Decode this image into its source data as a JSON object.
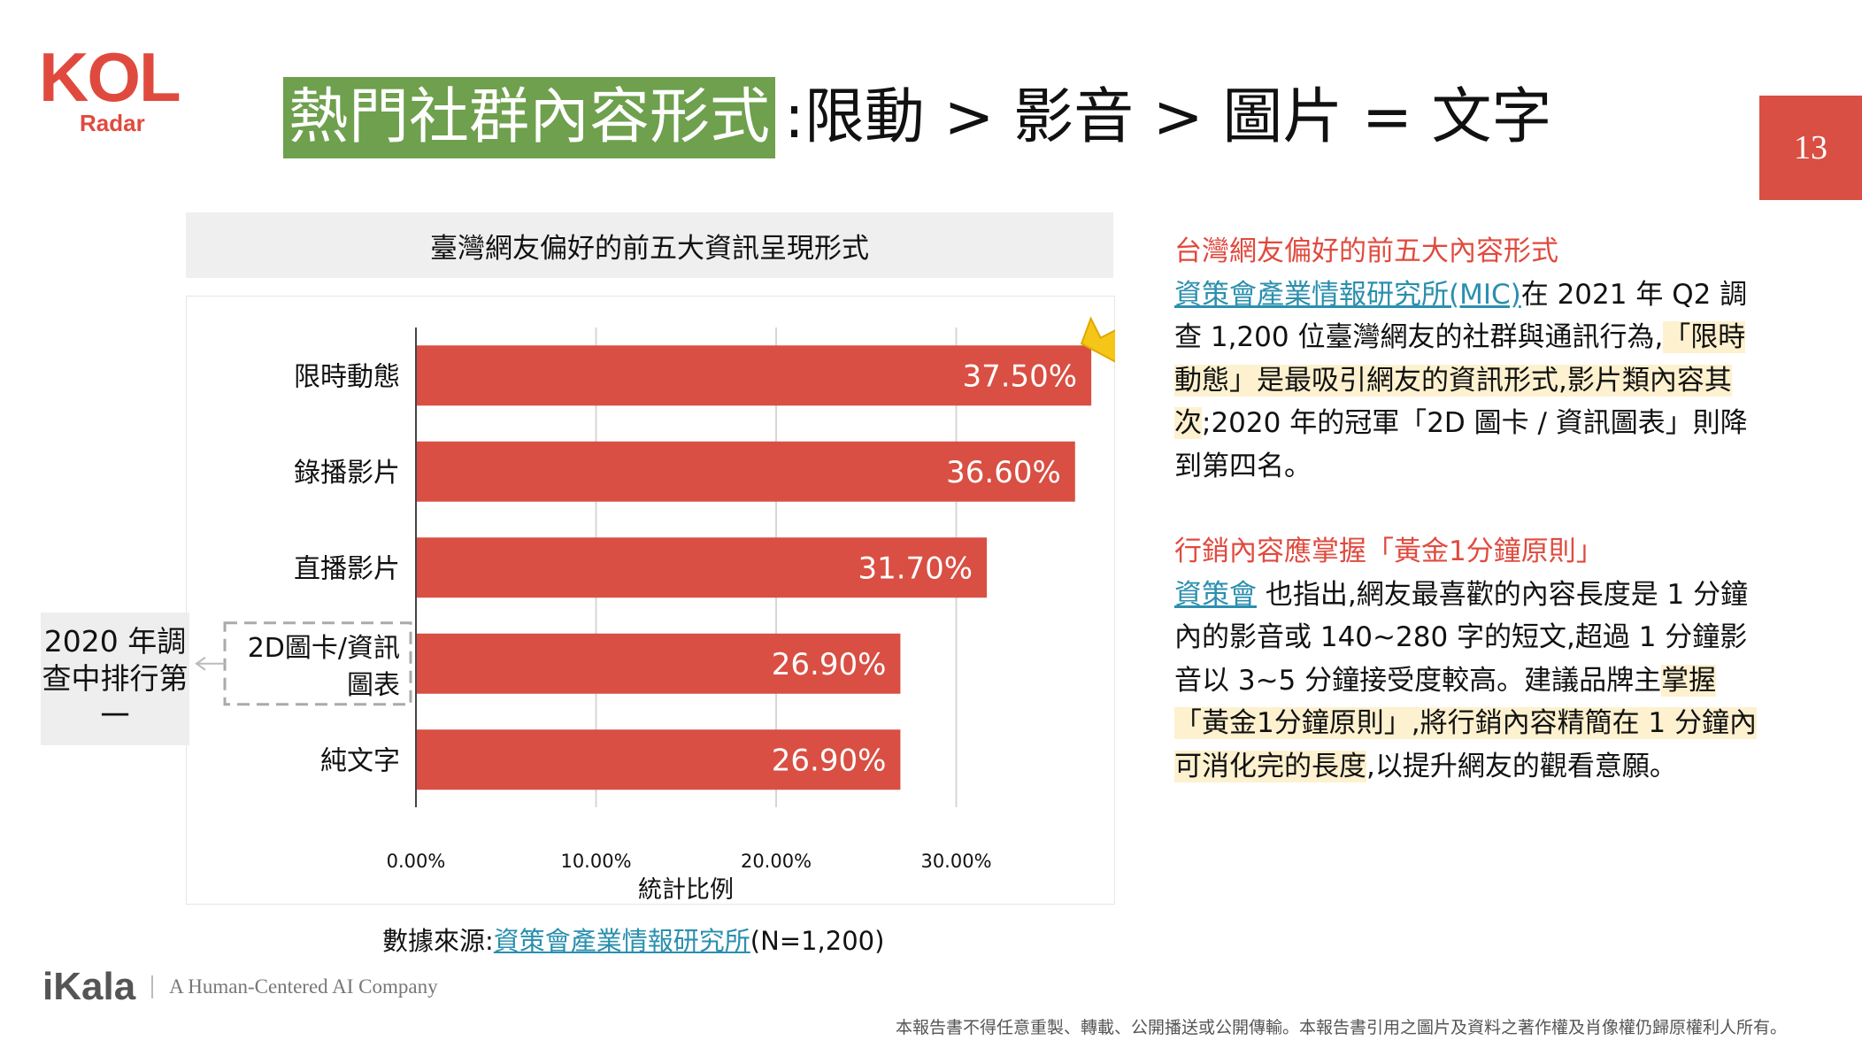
{
  "logo": {
    "kol": "KOL",
    "radar": "Radar"
  },
  "page_number": "13",
  "title": {
    "highlight": "熱門社群內容形式",
    "rest": ":限動 > 影音 > 圖片 = 文字"
  },
  "chart_box_title": "臺灣網友偏好的前五大資訊呈現形式",
  "callout": "2020 年調查中排行第一",
  "source": {
    "prefix": "數據來源:",
    "link": "資策會產業情報研究所",
    "suffix": "(N=1,200)"
  },
  "right": {
    "section1_heading": "台灣網友偏好的前五大內容形式",
    "section1_link": "資策會產業情報研究所(MIC)",
    "section1_text_a": "在 2021 年 Q2 調查 1,200 位臺灣網友的社群與通訊行為,",
    "section1_highlight": "「限時動態」是最吸引網友的資訊形式,影片類內容其次",
    "section1_text_b": ";2020 年的冠軍「2D 圖卡 / 資訊圖表」則降到第四名。",
    "section2_heading": "行銷內容應掌握「黃金1分鐘原則」",
    "section2_link": "資策會",
    "section2_text_a": " 也指出,網友最喜歡的內容長度是 1 分鐘內的影音或 140~280 字的短文,超過 1 分鐘影音以 3~5 分鐘接受度較高。建議品牌主",
    "section2_highlight": "掌握「黃金1分鐘原則」,將行銷內容精簡在 1 分鐘內可消化完的長度",
    "section2_text_b": ",以提升網友的觀看意願。"
  },
  "footer": {
    "brand": "iKala",
    "tagline": "A Human-Centered AI Company",
    "disclaimer": "本報告書不得任意重製、轉載、公開播送或公開傳輸。本報告書引用之圖片及資料之著作權及肖像權仍歸原權利人所有。"
  },
  "colors": {
    "bar": "#d94f43",
    "title_highlight": "#6ea04d",
    "accent": "#e04a3e",
    "link": "#2a8fae",
    "highlight_bg": "#fdf1cf",
    "crown": "#f5c518"
  },
  "icons": {
    "crown": "crown-icon",
    "arrow": "arrow-left-icon"
  },
  "chart_data": {
    "type": "bar",
    "orientation": "horizontal",
    "categories": [
      "限時動態",
      "錄播影片",
      "直播影片",
      "2D圖卡/資訊圖表",
      "純文字"
    ],
    "values": [
      37.5,
      36.6,
      31.7,
      26.9,
      26.9
    ],
    "value_labels": [
      "37.50%",
      "36.60%",
      "31.70%",
      "26.90%",
      "26.90%"
    ],
    "xlabel": "統計比例",
    "xticks": [
      "0.00%",
      "10.00%",
      "20.00%",
      "30.00%"
    ],
    "xtick_values": [
      0,
      10,
      20,
      30
    ],
    "xlim": [
      0,
      38
    ],
    "grid": true,
    "highlighted_category": "2D圖卡/資訊圖表"
  }
}
